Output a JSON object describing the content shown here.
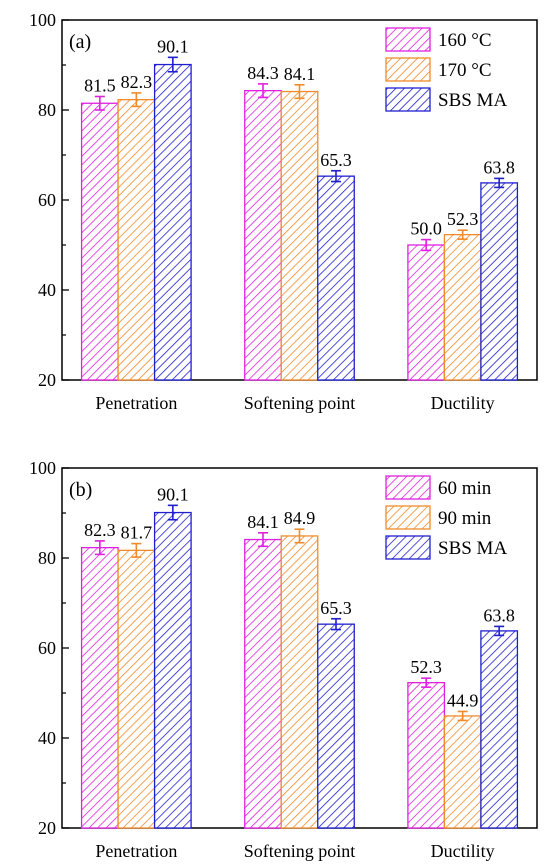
{
  "chart_data": [
    {
      "type": "bar",
      "panel_label": "(a)",
      "categories": [
        "Penetration",
        "Softening point",
        "Ductility"
      ],
      "ylim": [
        20,
        100
      ],
      "yticks": [
        20,
        40,
        60,
        80,
        100
      ],
      "legend_position": "top-right",
      "series": [
        {
          "name": "160 °C",
          "color": "#e020e0",
          "values": [
            81.5,
            84.3,
            50.0
          ],
          "labels": [
            "81.5",
            "84.3",
            "50.0"
          ],
          "errors": [
            1.5,
            1.5,
            1.2
          ]
        },
        {
          "name": "170 °C",
          "color": "#f08a2a",
          "values": [
            82.3,
            84.1,
            52.3
          ],
          "labels": [
            "82.3",
            "84.1",
            "52.3"
          ],
          "errors": [
            1.5,
            1.5,
            1.0
          ]
        },
        {
          "name": "SBS MA",
          "color": "#1f1fcf",
          "values": [
            90.1,
            65.3,
            63.8
          ],
          "labels": [
            "90.1",
            "65.3",
            "63.8"
          ],
          "errors": [
            1.6,
            1.2,
            1.0
          ]
        }
      ]
    },
    {
      "type": "bar",
      "panel_label": "(b)",
      "categories": [
        "Penetration",
        "Softening point",
        "Ductility"
      ],
      "ylim": [
        20,
        100
      ],
      "yticks": [
        20,
        40,
        60,
        80,
        100
      ],
      "legend_position": "top-right",
      "series": [
        {
          "name": "60 min",
          "color": "#e020e0",
          "values": [
            82.3,
            84.1,
            52.3
          ],
          "labels": [
            "82.3",
            "84.1",
            "52.3"
          ],
          "errors": [
            1.5,
            1.5,
            1.0
          ]
        },
        {
          "name": "90 min",
          "color": "#f08a2a",
          "values": [
            81.7,
            84.9,
            44.9
          ],
          "labels": [
            "81.7",
            "84.9",
            "44.9"
          ],
          "errors": [
            1.5,
            1.5,
            1.0
          ]
        },
        {
          "name": "SBS MA",
          "color": "#1f1fcf",
          "values": [
            90.1,
            65.3,
            63.8
          ],
          "labels": [
            "90.1",
            "65.3",
            "63.8"
          ],
          "errors": [
            1.6,
            1.2,
            1.0
          ]
        }
      ]
    }
  ]
}
